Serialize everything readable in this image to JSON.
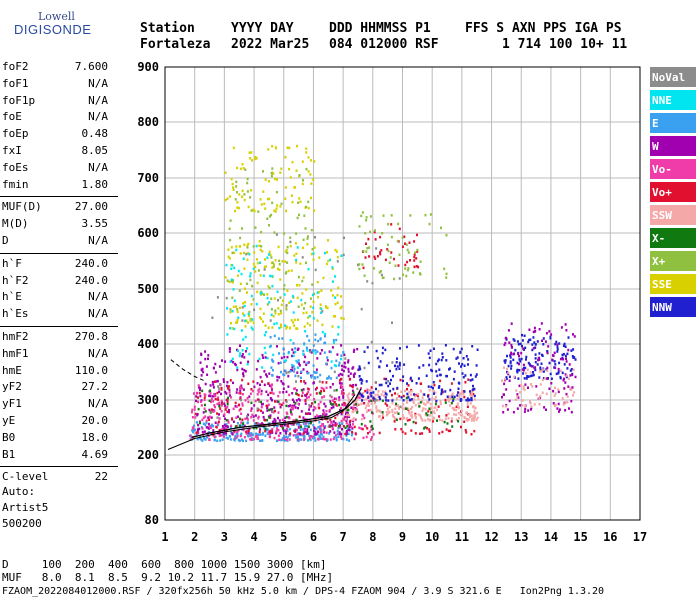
{
  "logo": {
    "line1": "Lowell",
    "line2": "DIGISONDE"
  },
  "header": {
    "labels": [
      "Station",
      "YYYY DAY",
      "DDD HHMMSS P1",
      "FFS S AXN PPS IGA PS"
    ],
    "values": [
      "Fortaleza",
      "2022 Mar25",
      "084 012000 RSF",
      "1 714 100 10+ 11"
    ]
  },
  "params": {
    "group1": [
      {
        "name": "foF2",
        "value": "7.600"
      },
      {
        "name": "foF1",
        "value": "N/A"
      },
      {
        "name": "foF1p",
        "value": "N/A"
      },
      {
        "name": "foE",
        "value": "N/A"
      },
      {
        "name": "foEp",
        "value": "0.48"
      },
      {
        "name": "fxI",
        "value": "8.05"
      },
      {
        "name": "foEs",
        "value": "N/A"
      },
      {
        "name": "fmin",
        "value": "1.80"
      }
    ],
    "group2": [
      {
        "name": "MUF(D)",
        "value": "27.00"
      },
      {
        "name": "M(D)",
        "value": "3.55"
      },
      {
        "name": "D",
        "value": "N/A"
      }
    ],
    "group3": [
      {
        "name": "h`F",
        "value": "240.0"
      },
      {
        "name": "h`F2",
        "value": "240.0"
      },
      {
        "name": "h`E",
        "value": "N/A"
      },
      {
        "name": "h`Es",
        "value": "N/A"
      }
    ],
    "group4": [
      {
        "name": "hmF2",
        "value": "270.8"
      },
      {
        "name": "hmF1",
        "value": "N/A"
      },
      {
        "name": "hmE",
        "value": "110.0"
      },
      {
        "name": "yF2",
        "value": "27.2"
      },
      {
        "name": "yF1",
        "value": "N/A"
      },
      {
        "name": "yE",
        "value": "20.0"
      },
      {
        "name": "B0",
        "value": "18.0"
      },
      {
        "name": "B1",
        "value": "4.69"
      }
    ],
    "group5": [
      {
        "name": "C-level",
        "value": "22"
      }
    ],
    "auto": [
      "Auto:",
      "Artist5",
      "500200"
    ]
  },
  "legend": [
    {
      "label": "NoVal",
      "color": "#8c8c8c"
    },
    {
      "label": "NNE",
      "color": "#00e5f0"
    },
    {
      "label": "E",
      "color": "#3aa0f0"
    },
    {
      "label": "W",
      "color": "#a000b0"
    },
    {
      "label": "Vo-",
      "color": "#f03ca8"
    },
    {
      "label": "Vo+",
      "color": "#e0102e"
    },
    {
      "label": "SSW",
      "color": "#f5a8a8"
    },
    {
      "label": "X-",
      "color": "#107a10"
    },
    {
      "label": "X+",
      "color": "#90c040"
    },
    {
      "label": "SSE",
      "color": "#d8d000"
    },
    {
      "label": "NNW",
      "color": "#2020d0"
    }
  ],
  "chart_data": {
    "type": "scatter",
    "title": "",
    "xlabel": "",
    "ylabel": "",
    "xlim": [
      1,
      17
    ],
    "ylim": [
      80,
      900
    ],
    "grid": true,
    "x_ticks": [
      "1",
      "2",
      "3",
      "4",
      "5",
      "6",
      "7",
      "8",
      "9",
      "10",
      "11",
      "12",
      "13",
      "14",
      "15",
      "16",
      "17"
    ],
    "y_ticks": [
      {
        "value": 80,
        "label": "80"
      },
      {
        "value": 200,
        "label": "200"
      },
      {
        "value": 300,
        "label": "300"
      },
      {
        "value": 400,
        "label": "400"
      },
      {
        "value": 500,
        "label": "500"
      },
      {
        "value": 600,
        "label": "600"
      },
      {
        "value": 700,
        "label": "700"
      },
      {
        "value": 800,
        "label": "800"
      },
      {
        "value": 900,
        "label": "900"
      }
    ],
    "clusters": [
      {
        "color": "#3aa0f0",
        "n": 260,
        "x": [
          1.8,
          7.3
        ],
        "y": [
          228,
          262
        ]
      },
      {
        "color": "#a000b0",
        "n": 420,
        "x": [
          2.0,
          7.5
        ],
        "y": [
          240,
          400
        ]
      },
      {
        "color": "#f03ca8",
        "n": 320,
        "x": [
          1.8,
          8.0
        ],
        "y": [
          230,
          330
        ]
      },
      {
        "color": "#e0102e",
        "n": 200,
        "x": [
          2.0,
          11.5
        ],
        "y": [
          240,
          340
        ]
      },
      {
        "color": "#f5a8a8",
        "n": 260,
        "x": [
          7.0,
          11.5
        ],
        "y": [
          265,
          320
        ]
      },
      {
        "color": "#d8d000",
        "n": 180,
        "x": [
          3.0,
          7.0
        ],
        "y": [
          430,
          590
        ]
      },
      {
        "color": "#d8d000",
        "n": 90,
        "x": [
          3.0,
          6.0
        ],
        "y": [
          640,
          760
        ]
      },
      {
        "color": "#90c040",
        "n": 100,
        "x": [
          3.0,
          6.0
        ],
        "y": [
          460,
          720
        ]
      },
      {
        "color": "#00e5f0",
        "n": 120,
        "x": [
          3.0,
          7.0
        ],
        "y": [
          360,
          580
        ]
      },
      {
        "color": "#2020d0",
        "n": 180,
        "x": [
          7.5,
          11.5
        ],
        "y": [
          300,
          400
        ]
      },
      {
        "color": "#2020d0",
        "n": 140,
        "x": [
          12.4,
          14.8
        ],
        "y": [
          340,
          420
        ]
      },
      {
        "color": "#a000b0",
        "n": 120,
        "x": [
          12.3,
          14.8
        ],
        "y": [
          280,
          440
        ]
      },
      {
        "color": "#f5a8a8",
        "n": 60,
        "x": [
          12.3,
          14.8
        ],
        "y": [
          290,
          360
        ]
      },
      {
        "color": "#107a10",
        "n": 90,
        "x": [
          2.0,
          11.0
        ],
        "y": [
          250,
          320
        ]
      },
      {
        "color": "#3aa0f0",
        "n": 80,
        "x": [
          4.5,
          7.0
        ],
        "y": [
          340,
          420
        ]
      },
      {
        "color": "#8c8c8c",
        "n": 60,
        "x": [
          2.5,
          9.0
        ],
        "y": [
          270,
          600
        ]
      },
      {
        "color": "#e0102e",
        "n": 40,
        "x": [
          7.5,
          9.5
        ],
        "y": [
          540,
          620
        ]
      },
      {
        "color": "#90c040",
        "n": 60,
        "x": [
          7.5,
          10.5
        ],
        "y": [
          520,
          640
        ]
      }
    ],
    "trace_virtual": [
      [
        1.9,
        232
      ],
      [
        2.5,
        240
      ],
      [
        3.5,
        250
      ],
      [
        4.5,
        256
      ],
      [
        5.5,
        262
      ],
      [
        6.5,
        270
      ],
      [
        7.1,
        285
      ],
      [
        7.4,
        300
      ],
      [
        7.6,
        320
      ]
    ],
    "trace_profile": [
      [
        1.1,
        210
      ],
      [
        2,
        230
      ],
      [
        3,
        242
      ],
      [
        4,
        250
      ],
      [
        5,
        256
      ],
      [
        6,
        262
      ],
      [
        6.6,
        268
      ],
      [
        7,
        280
      ],
      [
        7.2,
        295
      ],
      [
        7.4,
        310
      ]
    ],
    "trace_dashed": [
      [
        1.2,
        372
      ],
      [
        1.6,
        355
      ],
      [
        2.0,
        342
      ],
      [
        2.3,
        335
      ]
    ]
  },
  "footer": {
    "line1": "D     100  200  400  600  800 1000 1500 3000 [km]",
    "line2": "MUF   8.0  8.1  8.5  9.2 10.2 11.7 15.9 27.0 [MHz]",
    "line3": "FZAOM_2022084012000.RSF / 320fx256h 50 kHz 5.0 km / DPS-4 FZAOM 904 / 3.9 S 321.6 E   Ion2Png 1.3.20"
  }
}
